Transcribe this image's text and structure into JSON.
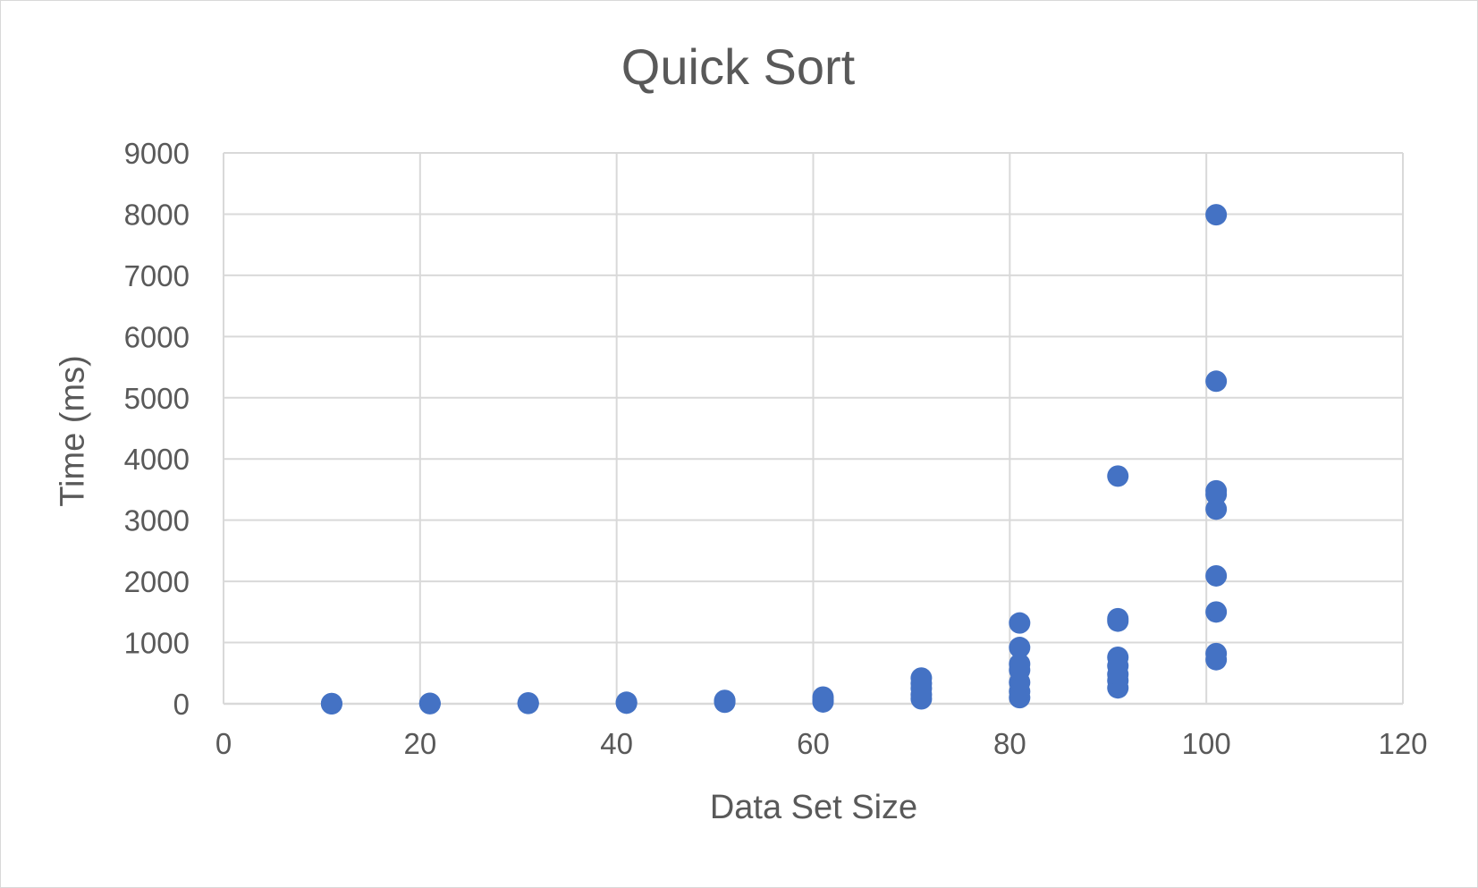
{
  "chart_data": {
    "type": "scatter",
    "title": "Quick Sort",
    "xlabel": "Data Set Size",
    "ylabel": "Time (ms)",
    "xlim": [
      0,
      120
    ],
    "ylim": [
      0,
      9000
    ],
    "xticks": [
      0,
      20,
      40,
      60,
      80,
      100,
      120
    ],
    "yticks": [
      0,
      1000,
      2000,
      3000,
      4000,
      5000,
      6000,
      7000,
      8000,
      9000
    ],
    "grid": true,
    "legend": "none",
    "marker_color": "#4472C4",
    "gridline_color": "#d9d9d9",
    "series": [
      {
        "points": [
          [
            11,
            0
          ],
          [
            11,
            2
          ],
          [
            11,
            4
          ],
          [
            21,
            2
          ],
          [
            21,
            5
          ],
          [
            21,
            8
          ],
          [
            31,
            5
          ],
          [
            31,
            10
          ],
          [
            31,
            15
          ],
          [
            41,
            10
          ],
          [
            41,
            18
          ],
          [
            41,
            25
          ],
          [
            51,
            25
          ],
          [
            51,
            40
          ],
          [
            51,
            55
          ],
          [
            61,
            30
          ],
          [
            61,
            60
          ],
          [
            61,
            110
          ],
          [
            71,
            80
          ],
          [
            71,
            150
          ],
          [
            71,
            250
          ],
          [
            71,
            330
          ],
          [
            71,
            420
          ],
          [
            81,
            100
          ],
          [
            81,
            200
          ],
          [
            81,
            350
          ],
          [
            81,
            550
          ],
          [
            81,
            650
          ],
          [
            81,
            920
          ],
          [
            81,
            1320
          ],
          [
            91,
            260
          ],
          [
            91,
            380
          ],
          [
            91,
            480
          ],
          [
            91,
            620
          ],
          [
            91,
            760
          ],
          [
            91,
            1350
          ],
          [
            91,
            1390
          ],
          [
            91,
            3720
          ],
          [
            101,
            720
          ],
          [
            101,
            820
          ],
          [
            101,
            1500
          ],
          [
            101,
            2090
          ],
          [
            101,
            3180
          ],
          [
            101,
            3420
          ],
          [
            101,
            3480
          ],
          [
            101,
            5270
          ],
          [
            101,
            7990
          ]
        ]
      }
    ]
  }
}
